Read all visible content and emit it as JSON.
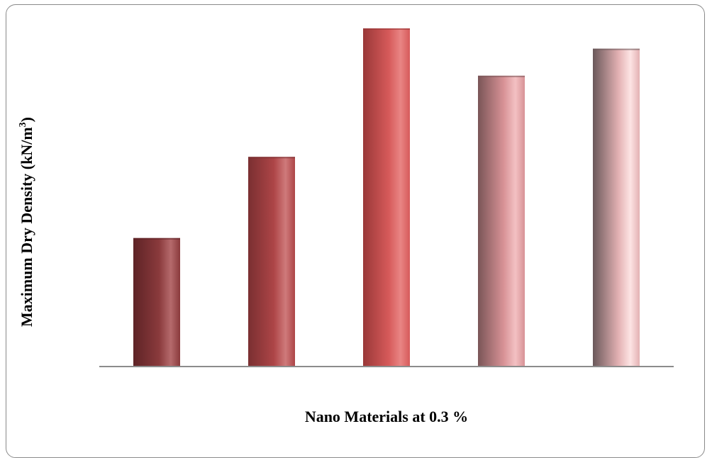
{
  "chart_data": {
    "type": "bar",
    "title": "",
    "xlabel": "Nano Materials at 0.3 %",
    "ylabel": "Maximum Dry Density (kN/m",
    "ylabel_sup": "3",
    "ylabel_close": ")",
    "categories": [
      "",
      "",
      "",
      "",
      ""
    ],
    "values": [
      0.38,
      0.62,
      1.0,
      0.86,
      0.94
    ],
    "ylim": [
      0,
      1.0
    ],
    "grid": false,
    "legend": "none",
    "colors": [
      {
        "dark": "#5e2326",
        "mid": "#8a3a3c",
        "light": "#b56a6c"
      },
      {
        "dark": "#7a2f31",
        "mid": "#ad4547",
        "light": "#cf7a7b"
      },
      {
        "dark": "#9a3838",
        "mid": "#d65a5a",
        "light": "#e98584"
      },
      {
        "dark": "#7a5557",
        "mid": "#d89296",
        "light": "#f3c1c3"
      },
      {
        "dark": "#6a585a",
        "mid": "#e3b1b3",
        "light": "#fde4e4"
      }
    ]
  }
}
